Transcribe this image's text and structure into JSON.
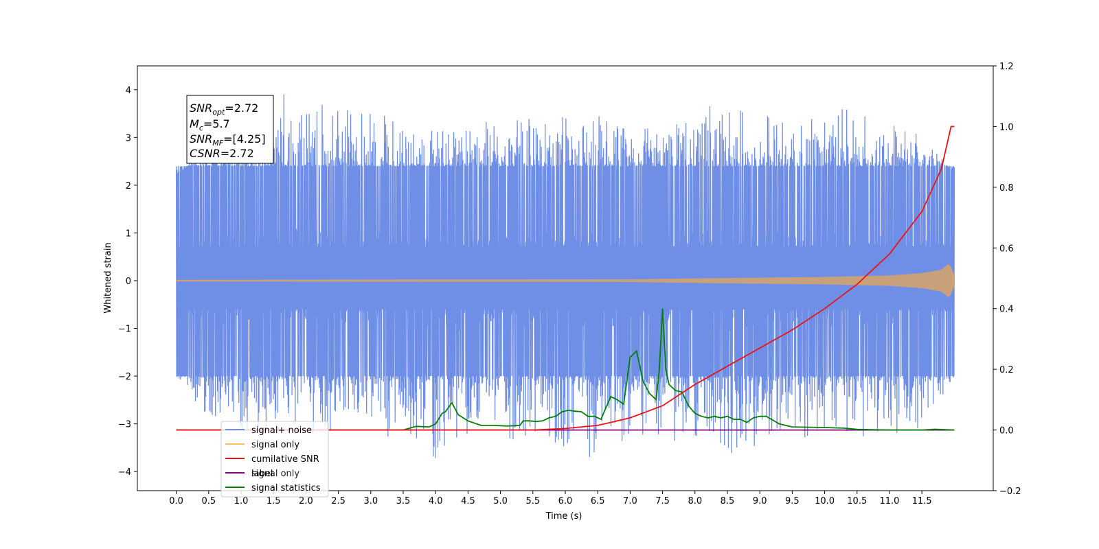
{
  "chart_data": {
    "type": "line",
    "title": "",
    "xlabel": "Time (s)",
    "ylabel": "Whitened strain",
    "xlim": [
      -0.6,
      12.6
    ],
    "ylim": [
      -4.4,
      4.5
    ],
    "y2lim": [
      -0.2,
      1.2
    ],
    "x_ticks": [
      "0.0",
      "0.5",
      "1.0",
      "1.5",
      "2.0",
      "2.5",
      "3.0",
      "3.5",
      "4.0",
      "4.5",
      "5.0",
      "5.5",
      "6.0",
      "6.5",
      "7.0",
      "7.5",
      "8.0",
      "8.5",
      "9.0",
      "9.5",
      "10.0",
      "10.5",
      "11.0",
      "11.5"
    ],
    "y_ticks": [
      "4",
      "3",
      "2",
      "1",
      "0",
      "−1",
      "−2",
      "−3",
      "−4"
    ],
    "y2_ticks": [
      "1.2",
      "1.0",
      "0.8",
      "0.6",
      "0.4",
      "0.2",
      "0.0",
      "−0.2"
    ],
    "stats_box": {
      "snr_opt": {
        "base": "SNR",
        "sub": "opt",
        "value": "=2.72"
      },
      "mc": {
        "base": "M",
        "sub": "c",
        "value": "=5.7"
      },
      "snr_mf": {
        "base": "SNR",
        "sub": "MF",
        "value": "=[4.25]"
      },
      "csnr": {
        "base": "CSNR",
        "sub": "",
        "value": "=2.72"
      }
    },
    "legend": {
      "position": "lower-left",
      "items": [
        "signal+ noise",
        "signal only",
        "cumilative SNR",
        "label",
        "signal statistics"
      ]
    },
    "overlap_text": "signal only",
    "colors": {
      "noise": "#6f8ee6",
      "signal": "#c8a07a",
      "signal_legend": "#ffbf60",
      "csnr": "#ee1111",
      "label": "#800080",
      "stats": "#008000"
    },
    "series": [
      {
        "name": "signal+ noise",
        "axis": "left",
        "style": "noise-band",
        "t_start": 0.0,
        "t_end": 12.0,
        "typical_range": [
          -2.0,
          2.4
        ],
        "envelope_high": [
          [
            0.0,
            2.1
          ],
          [
            0.5,
            3.0
          ],
          [
            1.0,
            3.2
          ],
          [
            1.6,
            4.1
          ],
          [
            2.15,
            3.9
          ],
          [
            3.0,
            3.6
          ],
          [
            4.0,
            3.2
          ],
          [
            4.85,
            3.35
          ],
          [
            5.6,
            3.4
          ],
          [
            6.5,
            3.6
          ],
          [
            7.0,
            3.2
          ],
          [
            7.6,
            3.2
          ],
          [
            8.15,
            3.7
          ],
          [
            9.0,
            3.5
          ],
          [
            10.4,
            3.6
          ],
          [
            11.0,
            3.3
          ],
          [
            11.5,
            3.2
          ],
          [
            12.0,
            2.2
          ]
        ],
        "envelope_low": [
          [
            0.0,
            -2.0
          ],
          [
            0.5,
            -2.9
          ],
          [
            1.0,
            -3.3
          ],
          [
            1.6,
            -3.0
          ],
          [
            2.0,
            -3.4
          ],
          [
            3.0,
            -3.0
          ],
          [
            3.65,
            -3.7
          ],
          [
            4.05,
            -3.75
          ],
          [
            4.6,
            -3.4
          ],
          [
            5.5,
            -3.3
          ],
          [
            6.0,
            -3.5
          ],
          [
            6.28,
            -3.9
          ],
          [
            7.0,
            -3.3
          ],
          [
            8.0,
            -3.4
          ],
          [
            8.6,
            -3.65
          ],
          [
            9.3,
            -3.3
          ],
          [
            10.2,
            -3.3
          ],
          [
            10.9,
            -3.4
          ],
          [
            11.5,
            -3.1
          ],
          [
            12.0,
            -2.0
          ]
        ]
      },
      {
        "name": "signal only",
        "axis": "left",
        "style": "chirp",
        "x": [
          0.0,
          7.0,
          8.0,
          9.0,
          10.0,
          10.5,
          11.0,
          11.5,
          11.8,
          11.92,
          12.0
        ],
        "amplitude": [
          0.01,
          0.02,
          0.04,
          0.055,
          0.07,
          0.085,
          0.1,
          0.15,
          0.22,
          0.35,
          0.1
        ]
      },
      {
        "name": "cumilative SNR",
        "axis": "right",
        "x": [
          0.0,
          5.5,
          6.0,
          6.5,
          7.0,
          7.5,
          8.0,
          8.5,
          9.0,
          9.5,
          10.0,
          10.5,
          11.0,
          11.5,
          11.8,
          11.95,
          12.0
        ],
        "y": [
          0.0,
          0.0,
          0.005,
          0.015,
          0.04,
          0.08,
          0.15,
          0.21,
          0.27,
          0.33,
          0.4,
          0.48,
          0.58,
          0.72,
          0.86,
          1.0,
          1.0
        ]
      },
      {
        "name": "label",
        "axis": "right",
        "x": [
          0.0,
          12.0
        ],
        "y": [
          0.0,
          0.0
        ]
      },
      {
        "name": "signal statistics",
        "axis": "right",
        "x": [
          0.0,
          3.5,
          3.7,
          3.9,
          4.0,
          4.1,
          4.15,
          4.25,
          4.35,
          4.5,
          4.7,
          4.9,
          5.1,
          5.3,
          5.35,
          5.45,
          5.55,
          5.65,
          5.75,
          5.85,
          5.95,
          6.05,
          6.15,
          6.25,
          6.35,
          6.45,
          6.55,
          6.7,
          6.8,
          6.9,
          7.0,
          7.1,
          7.2,
          7.3,
          7.4,
          7.45,
          7.5,
          7.55,
          7.6,
          7.7,
          7.8,
          7.9,
          8.0,
          8.1,
          8.2,
          8.3,
          8.4,
          8.5,
          8.6,
          8.7,
          8.8,
          8.9,
          9.0,
          9.1,
          9.3,
          9.5,
          10.0,
          10.3,
          10.5,
          11.0,
          11.5,
          11.7,
          12.0
        ],
        "y": [
          0.0,
          0.0,
          0.012,
          0.01,
          0.02,
          0.055,
          0.06,
          0.09,
          0.05,
          0.03,
          0.015,
          0.015,
          0.013,
          0.015,
          0.03,
          0.03,
          0.028,
          0.03,
          0.04,
          0.045,
          0.06,
          0.065,
          0.062,
          0.06,
          0.045,
          0.045,
          0.035,
          0.11,
          0.1,
          0.085,
          0.24,
          0.26,
          0.16,
          0.12,
          0.1,
          0.2,
          0.4,
          0.2,
          0.15,
          0.13,
          0.125,
          0.08,
          0.055,
          0.045,
          0.04,
          0.045,
          0.04,
          0.045,
          0.035,
          0.035,
          0.025,
          0.04,
          0.045,
          0.045,
          0.02,
          0.01,
          0.008,
          0.006,
          0.002,
          0.0,
          0.0,
          0.0025,
          0.0
        ]
      }
    ]
  }
}
